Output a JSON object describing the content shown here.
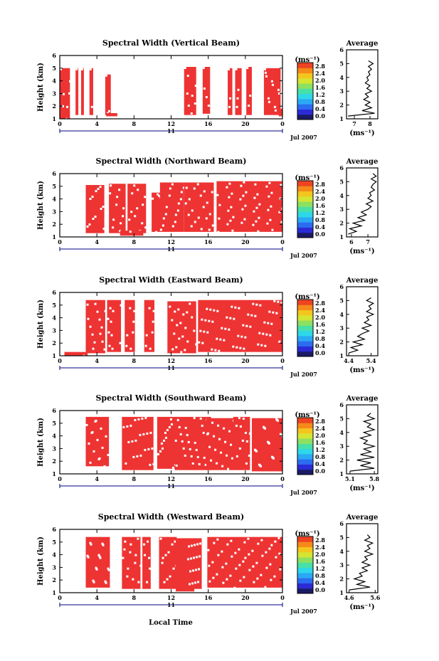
{
  "figure": {
    "xlabel": "Local Time",
    "date_label": "Jul 2007",
    "day_label": "11",
    "colorbar_unit": "(ms⁻¹)",
    "average_title": "Average",
    "average_unit": "(ms⁻¹)"
  },
  "colors": {
    "signal": "#ee3333",
    "axis": "#000000",
    "day_axis": "#000080",
    "colorbar": [
      "#1a1a66",
      "#2b2bd6",
      "#2c6cf0",
      "#2aa9f4",
      "#2ed8e8",
      "#47e0a8",
      "#8de060",
      "#d4e533",
      "#f3c61e",
      "#f58a1a",
      "#ee4422"
    ]
  },
  "chart_data": [
    {
      "type": "heatmap",
      "title": "Spectral Width (Vertical Beam)",
      "ylabel": "Height (km)",
      "ylim": [
        1,
        6
      ],
      "yticks": [
        "1",
        "2",
        "3",
        "4",
        "5",
        "6"
      ],
      "xlim": [
        0,
        24
      ],
      "xticks": [
        "0",
        "4",
        "8",
        "12",
        "16",
        "20",
        "0"
      ],
      "colorbar_ticks": [
        "0.0",
        "0.4",
        "0.8",
        "1.2",
        "1.6",
        "2.0",
        "2.4",
        "2.8"
      ],
      "avg_xticks": [
        "7",
        "8"
      ],
      "avg_xlim": [
        6.5,
        8.5
      ],
      "blocks": [
        [
          0.0,
          1.1,
          1.0,
          5.0
        ],
        [
          1.7,
          2.0,
          1.3,
          5.0
        ],
        [
          2.3,
          2.6,
          1.3,
          5.0
        ],
        [
          3.2,
          3.6,
          1.3,
          5.0
        ],
        [
          4.9,
          5.5,
          1.3,
          4.5
        ],
        [
          5.0,
          6.2,
          1.2,
          1.45
        ],
        [
          13.4,
          14.7,
          1.3,
          5.1
        ],
        [
          15.4,
          16.2,
          1.4,
          5.1
        ],
        [
          18.1,
          18.6,
          1.3,
          5.0
        ],
        [
          18.9,
          19.6,
          1.3,
          5.0
        ],
        [
          20.1,
          20.7,
          1.3,
          5.1
        ],
        [
          22.0,
          23.8,
          1.3,
          5.0
        ],
        [
          23.6,
          24.0,
          1.2,
          1.8
        ]
      ],
      "avg_height": [
        1.2,
        1.4,
        1.6,
        1.8,
        2.0,
        2.2,
        2.4,
        2.6,
        2.8,
        3.0,
        3.2,
        3.4,
        3.6,
        3.8,
        4.0,
        4.2,
        4.4,
        4.6,
        4.8,
        5.0,
        5.2
      ],
      "avg_value": [
        6.6,
        8.3,
        7.5,
        8.1,
        7.7,
        8.0,
        7.6,
        7.9,
        7.7,
        8.1,
        7.8,
        8.0,
        7.7,
        7.9,
        7.8,
        8.0,
        7.9,
        8.1,
        7.9,
        8.2,
        7.9
      ]
    },
    {
      "type": "heatmap",
      "title": "Spectral Width (Northward Beam)",
      "ylabel": "Height (km)",
      "ylim": [
        1,
        6
      ],
      "yticks": [
        "1",
        "2",
        "3",
        "4",
        "5",
        "6"
      ],
      "xlim": [
        0,
        24
      ],
      "xticks": [
        "0",
        "4",
        "8",
        "12",
        "16",
        "20",
        "0"
      ],
      "colorbar_ticks": [
        "0.0",
        "0.4",
        "0.8",
        "1.2",
        "1.6",
        "2.0",
        "2.4",
        "2.8"
      ],
      "avg_xticks": [
        "6",
        "7"
      ],
      "avg_xlim": [
        5.7,
        7.6
      ],
      "blocks": [
        [
          2.8,
          4.8,
          1.3,
          5.1
        ],
        [
          5.3,
          7.1,
          1.3,
          5.2
        ],
        [
          7.3,
          9.3,
          1.3,
          5.2
        ],
        [
          9.9,
          10.9,
          1.4,
          4.5
        ],
        [
          10.8,
          13.4,
          1.4,
          5.3
        ],
        [
          13.4,
          16.6,
          1.4,
          5.3
        ],
        [
          16.9,
          24.0,
          1.4,
          5.4
        ],
        [
          6.5,
          9.0,
          1.1,
          1.5
        ]
      ],
      "avg_height": [
        1.2,
        1.4,
        1.6,
        1.8,
        2.0,
        2.2,
        2.4,
        2.6,
        2.8,
        3.0,
        3.2,
        3.4,
        3.6,
        3.8,
        4.0,
        4.2,
        4.4,
        4.6,
        4.8,
        5.0,
        5.2,
        5.4,
        5.6
      ],
      "avg_value": [
        5.8,
        6.3,
        5.9,
        6.6,
        6.1,
        6.8,
        6.4,
        6.9,
        6.6,
        7.0,
        7.2,
        6.9,
        7.3,
        7.0,
        7.2,
        7.1,
        7.4,
        7.2,
        7.3,
        7.5,
        7.2,
        7.5,
        7.3
      ]
    },
    {
      "type": "heatmap",
      "title": "Spectral Width (Eastward Beam)",
      "ylabel": "Height (km)",
      "ylim": [
        1,
        6
      ],
      "yticks": [
        "1",
        "2",
        "3",
        "4",
        "5",
        "6"
      ],
      "xlim": [
        0,
        24
      ],
      "xticks": [
        "0",
        "4",
        "8",
        "12",
        "16",
        "20",
        "0"
      ],
      "colorbar_ticks": [
        "0.0",
        "0.4",
        "0.8",
        "1.2",
        "1.6",
        "2.0",
        "2.4",
        "2.8"
      ],
      "avg_xticks": [
        "4.4",
        "5.4"
      ],
      "avg_xlim": [
        4.3,
        5.7
      ],
      "blocks": [
        [
          2.8,
          4.9,
          1.2,
          5.4
        ],
        [
          5.1,
          6.6,
          1.3,
          5.4
        ],
        [
          7.0,
          8.1,
          1.3,
          5.4
        ],
        [
          9.1,
          10.2,
          1.3,
          5.4
        ],
        [
          11.6,
          14.7,
          1.2,
          5.3
        ],
        [
          14.9,
          24.0,
          1.3,
          5.4
        ],
        [
          0.5,
          3.0,
          1.0,
          1.3
        ]
      ],
      "avg_height": [
        1.2,
        1.4,
        1.6,
        1.8,
        2.0,
        2.2,
        2.4,
        2.6,
        2.8,
        3.0,
        3.2,
        3.4,
        3.6,
        3.8,
        4.0,
        4.2,
        4.4,
        4.6,
        4.8,
        5.0,
        5.2
      ],
      "avg_value": [
        4.4,
        4.8,
        4.5,
        5.0,
        4.6,
        5.1,
        4.8,
        5.0,
        5.3,
        5.0,
        5.4,
        5.1,
        5.3,
        5.2,
        5.5,
        5.2,
        5.4,
        5.3,
        5.5,
        5.2,
        5.4
      ]
    },
    {
      "type": "heatmap",
      "title": "Spectral Width (Southward Beam)",
      "ylabel": "Height (km)",
      "ylim": [
        1,
        6
      ],
      "yticks": [
        "1",
        "2",
        "3",
        "4",
        "5",
        "6"
      ],
      "xlim": [
        0,
        24
      ],
      "xticks": [
        "0",
        "4",
        "8",
        "12",
        "16",
        "20",
        "0"
      ],
      "colorbar_ticks": [
        "0.0",
        "0.4",
        "0.8",
        "1.2",
        "1.6",
        "2.0",
        "2.4",
        "2.8"
      ],
      "avg_xticks": [
        "5.1",
        "5.8"
      ],
      "avg_xlim": [
        5.0,
        5.9
      ],
      "blocks": [
        [
          2.8,
          5.3,
          1.6,
          5.5
        ],
        [
          6.7,
          10.1,
          1.3,
          5.5
        ],
        [
          10.5,
          12.8,
          1.4,
          5.5
        ],
        [
          12.4,
          16.3,
          1.3,
          5.5
        ],
        [
          15.8,
          18.8,
          1.3,
          5.4
        ],
        [
          18.7,
          20.5,
          1.3,
          5.5
        ],
        [
          20.7,
          24.0,
          1.2,
          5.4
        ]
      ],
      "avg_height": [
        1.2,
        1.4,
        1.6,
        1.8,
        2.0,
        2.2,
        2.4,
        2.6,
        2.8,
        3.0,
        3.2,
        3.4,
        3.6,
        3.8,
        4.0,
        4.2,
        4.4,
        4.6,
        4.8,
        5.0,
        5.2,
        5.4
      ],
      "avg_value": [
        5.1,
        5.8,
        5.4,
        5.7,
        5.3,
        5.8,
        5.4,
        5.7,
        5.5,
        5.8,
        5.5,
        5.6,
        5.4,
        5.7,
        5.5,
        5.8,
        5.6,
        5.7,
        5.5,
        5.8,
        5.6,
        5.7
      ]
    },
    {
      "type": "heatmap",
      "title": "Spectral Width (Westward Beam)",
      "ylabel": "Height (km)",
      "ylim": [
        1,
        6
      ],
      "yticks": [
        "1",
        "2",
        "3",
        "4",
        "5",
        "6"
      ],
      "xlim": [
        0,
        24
      ],
      "xticks": [
        "0",
        "4",
        "8",
        "12",
        "16",
        "20",
        "0"
      ],
      "colorbar_ticks": [
        "0.0",
        "0.4",
        "0.8",
        "1.2",
        "1.6",
        "2.0",
        "2.4",
        "2.8"
      ],
      "avg_xticks": [
        "4.6",
        "5.6"
      ],
      "avg_xlim": [
        4.5,
        5.7
      ],
      "blocks": [
        [
          2.8,
          5.4,
          1.4,
          5.4
        ],
        [
          6.7,
          8.7,
          1.3,
          5.4
        ],
        [
          8.9,
          9.8,
          1.3,
          5.4
        ],
        [
          10.7,
          12.6,
          1.3,
          5.4
        ],
        [
          12.5,
          15.3,
          1.3,
          5.3
        ],
        [
          15.9,
          24.0,
          1.4,
          5.4
        ],
        [
          12.5,
          14.5,
          1.1,
          1.4
        ]
      ],
      "avg_height": [
        1.2,
        1.4,
        1.6,
        1.8,
        2.0,
        2.2,
        2.4,
        2.6,
        2.8,
        3.0,
        3.2,
        3.4,
        3.6,
        3.8,
        4.0,
        4.2,
        4.4,
        4.6,
        4.8,
        5.0,
        5.2
      ],
      "avg_value": [
        4.6,
        5.4,
        4.9,
        5.2,
        4.8,
        5.1,
        5.0,
        5.3,
        5.1,
        5.4,
        5.1,
        5.3,
        5.2,
        5.5,
        5.2,
        5.4,
        5.3,
        5.5,
        5.2,
        5.4,
        5.3
      ]
    }
  ]
}
